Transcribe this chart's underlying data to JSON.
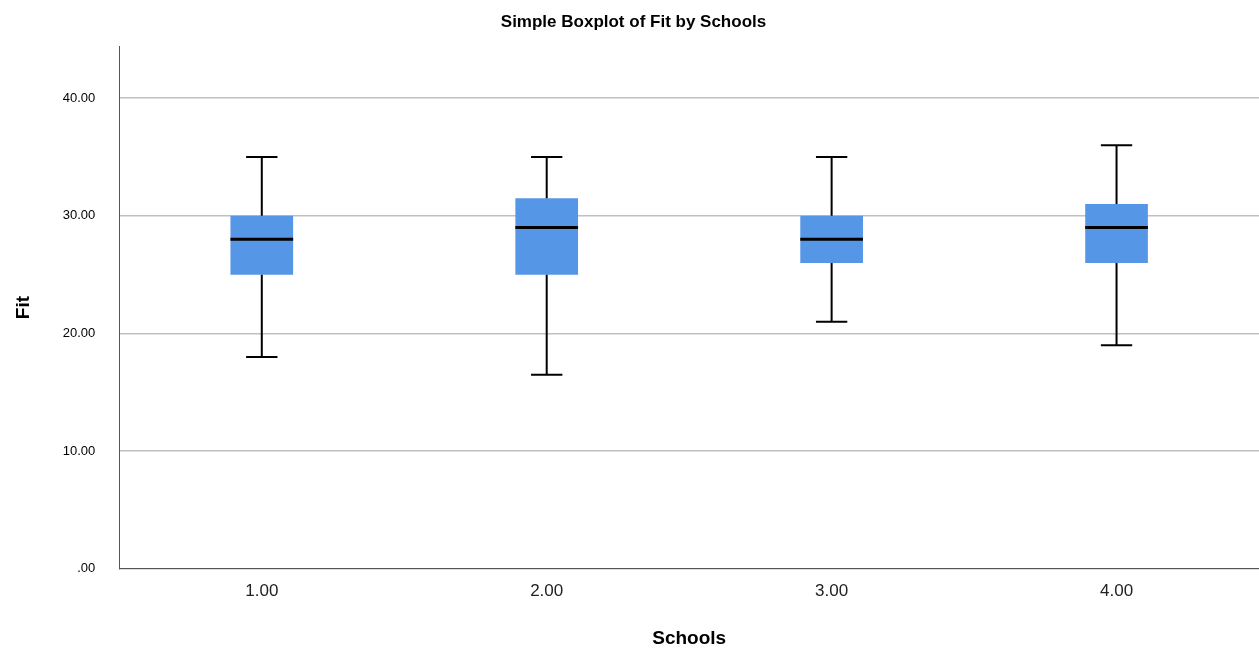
{
  "chart_data": {
    "type": "box",
    "title": "Simple Boxplot of Fit by Schools",
    "xlabel": "Schools",
    "ylabel": "Fit",
    "categories": [
      "1.00",
      "2.00",
      "3.00",
      "4.00"
    ],
    "color": "#5596e6",
    "boxes": [
      {
        "low": 18,
        "q1": 25,
        "median": 28,
        "q3": 30,
        "high": 35
      },
      {
        "low": 16.5,
        "q1": 25,
        "median": 29,
        "q3": 31.5,
        "high": 35
      },
      {
        "low": 21,
        "q1": 26,
        "median": 28,
        "q3": 30,
        "high": 35
      },
      {
        "low": 19,
        "q1": 26,
        "median": 29,
        "q3": 31,
        "high": 36
      }
    ],
    "ylim": [
      0,
      44.4
    ],
    "yticks": [
      {
        "value": 0,
        "label": ".00"
      },
      {
        "value": 10,
        "label": "10.00"
      },
      {
        "value": 20,
        "label": "20.00"
      },
      {
        "value": 30,
        "label": "30.00"
      },
      {
        "value": 40,
        "label": "40.00"
      }
    ],
    "grid": "y",
    "legend": false
  }
}
